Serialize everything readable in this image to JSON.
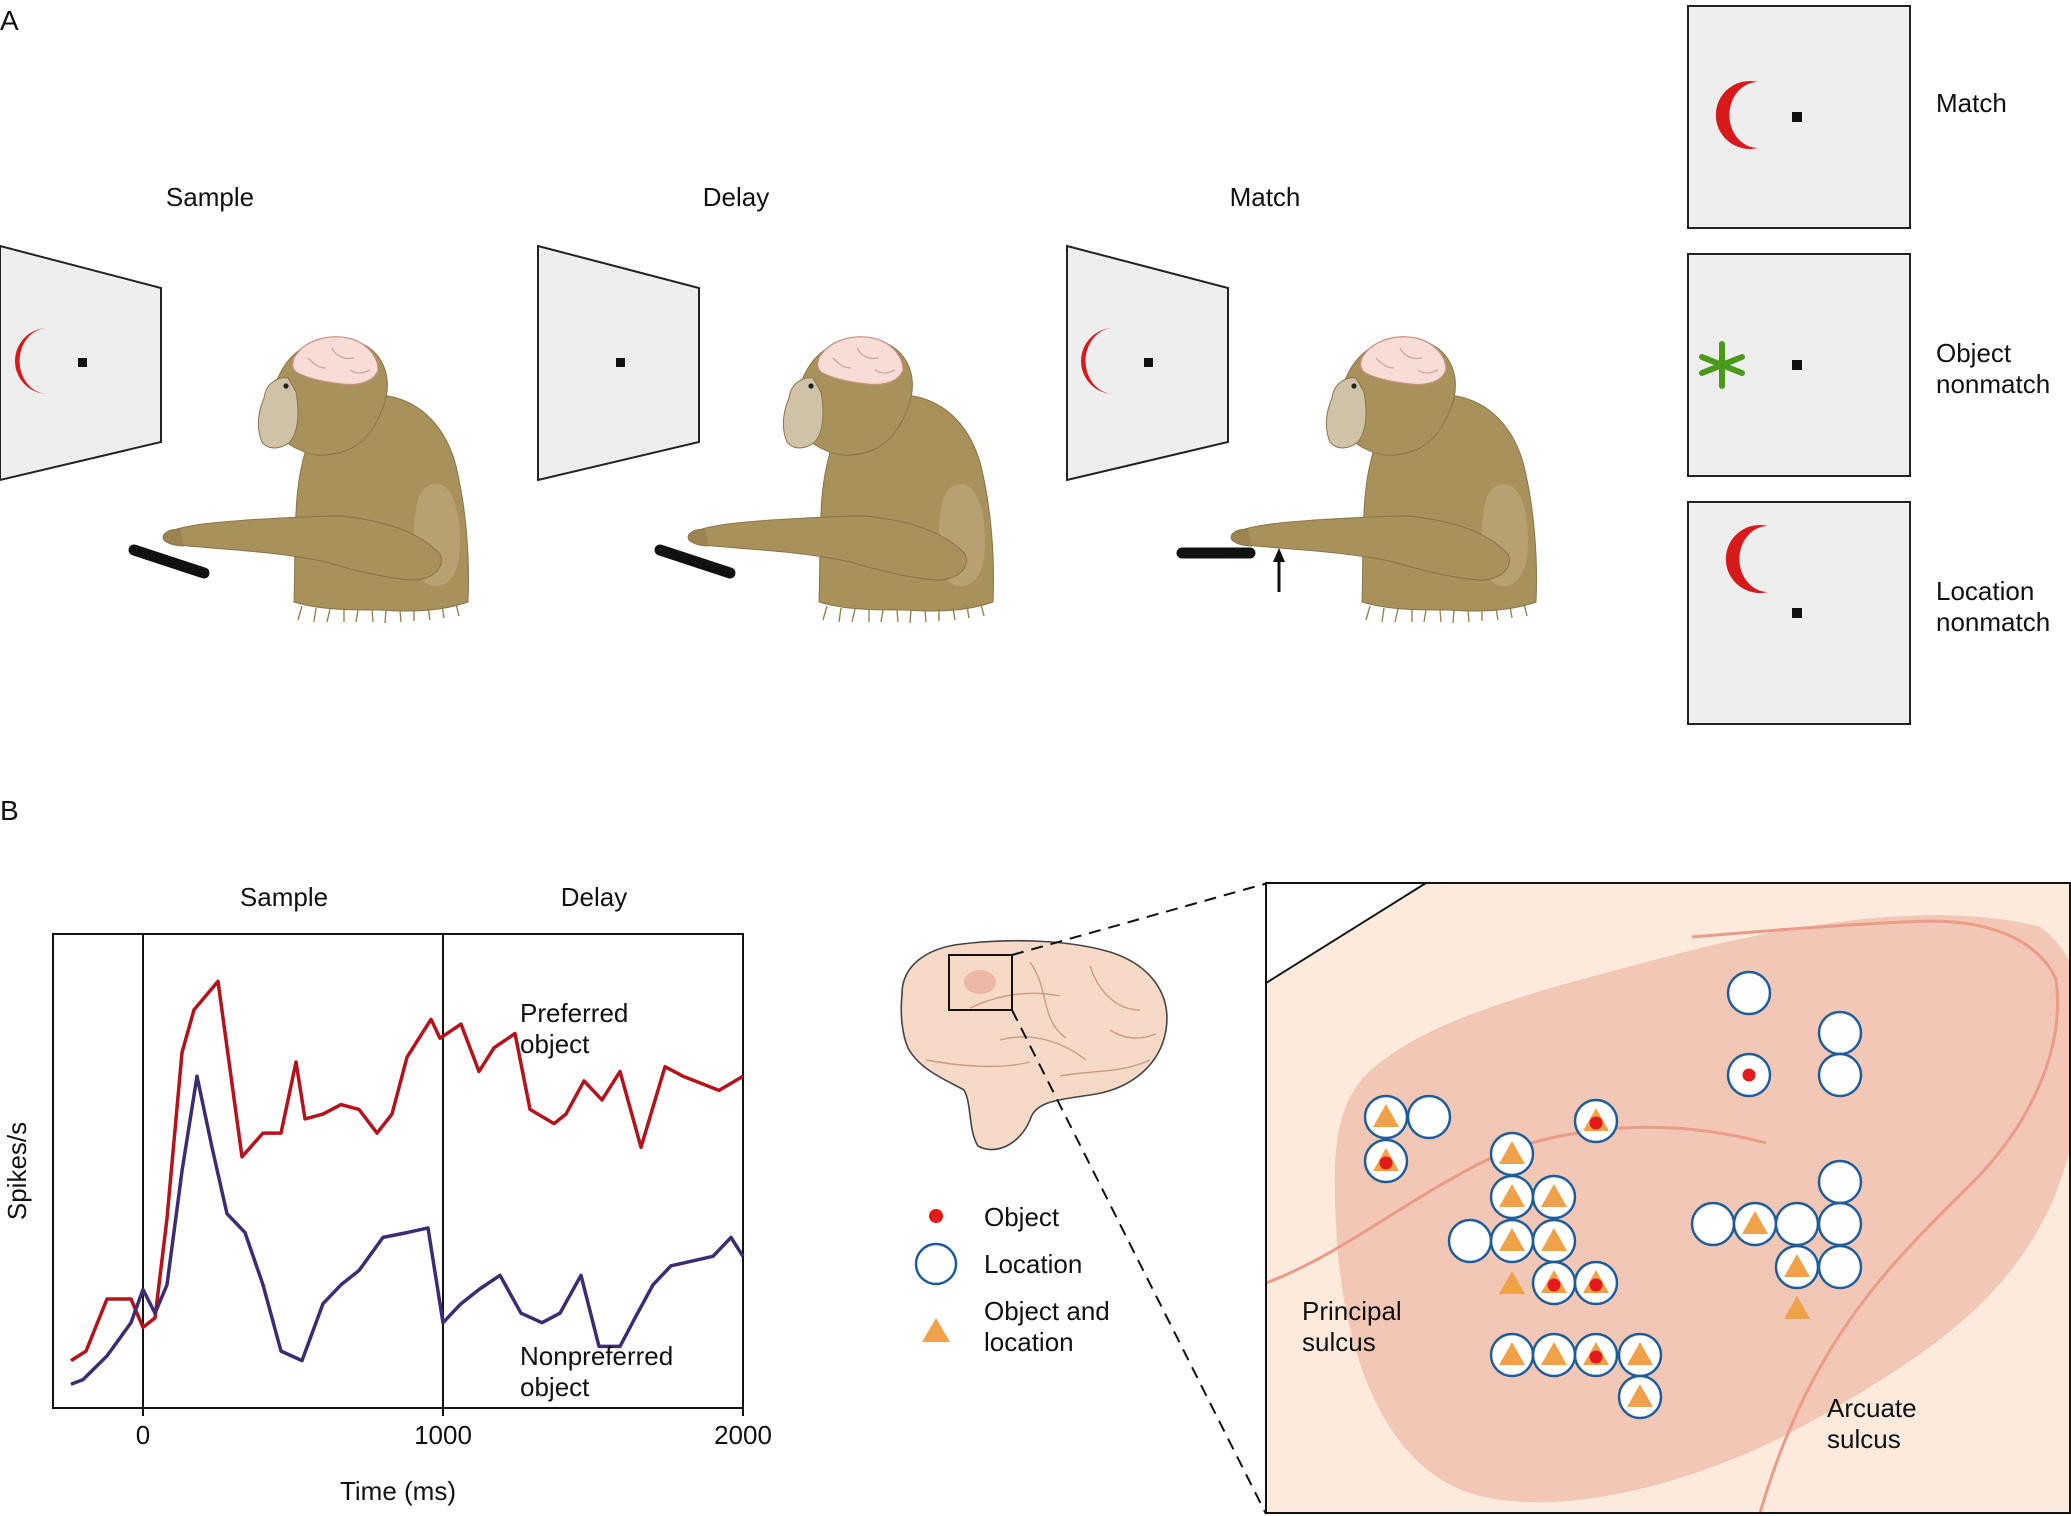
{
  "panel_a": {
    "letter": "A",
    "steps": {
      "sample": "Sample",
      "delay": "Delay",
      "match": "Match"
    },
    "test_screens": {
      "match": [
        "Match"
      ],
      "object_nonmatch": [
        "Object",
        "nonmatch"
      ],
      "location_nonmatch": [
        "Location",
        "nonmatch"
      ]
    },
    "icons": {
      "sample_stimulus": "red-crescent-icon",
      "nonmatch_object": "green-asterisk-icon",
      "fixation": "fixation-point-icon",
      "lever": "lever-icon",
      "release": "up-arrow-icon",
      "subject": "monkey-illustration"
    },
    "colors": {
      "crescent": "#d7191c",
      "asterisk": "#4a9a1a",
      "screen": "#eeeeee",
      "fur": "#a8915a"
    }
  },
  "panel_b": {
    "letter": "B",
    "epochs": {
      "sample": "Sample",
      "delay": "Delay"
    },
    "series_labels": {
      "preferred": [
        "Preferred",
        "object"
      ],
      "nonpreferred": [
        "Nonpreferred",
        "object"
      ]
    },
    "legend": {
      "object": [
        "Object"
      ],
      "location": [
        "Location"
      ],
      "both": [
        "Object and",
        "location"
      ]
    },
    "sulci": {
      "principal": [
        "Principal",
        "sulcus"
      ],
      "arcuate": [
        "Arcuate",
        "sulcus"
      ]
    },
    "colors": {
      "preferred": "#b5121b",
      "nonpreferred": "#3d2c73",
      "object_dot": "#e31a1c",
      "location_ring": "#1f5d9a",
      "triangle": "#f0a24a",
      "cortex_bg": "#fcebdd",
      "region": "#f3c7b5"
    }
  },
  "chart_data": {
    "type": "line",
    "title": "",
    "xlabel": "Time (ms)",
    "ylabel": "Spikes/s",
    "xlim": [
      -300,
      2000
    ],
    "ylim": [
      0,
      100
    ],
    "xticks": [
      0,
      1000,
      2000
    ],
    "yticks_labeled": false,
    "grid": false,
    "markers": [
      0,
      1000
    ],
    "series": [
      {
        "name": "Preferred object",
        "x": [
          -240,
          -190,
          -120,
          -40,
          0,
          40,
          80,
          130,
          170,
          250,
          330,
          400,
          460,
          510,
          540,
          600,
          660,
          720,
          780,
          830,
          880,
          960,
          990,
          1060,
          1120,
          1170,
          1240,
          1290,
          1370,
          1410,
          1470,
          1530,
          1590,
          1660,
          1740,
          1800,
          1920,
          2000
        ],
        "values": [
          10,
          12,
          23,
          23,
          17,
          19,
          40,
          75,
          84,
          90,
          53,
          58,
          58,
          73,
          61,
          62,
          64,
          63,
          58,
          62,
          74,
          82,
          78,
          81,
          71,
          76,
          79,
          63,
          60,
          62,
          69,
          65,
          71,
          55,
          72,
          70,
          67,
          70
        ]
      },
      {
        "name": "Nonpreferred object",
        "x": [
          -240,
          -200,
          -120,
          -40,
          0,
          40,
          80,
          130,
          180,
          230,
          280,
          340,
          400,
          460,
          530,
          600,
          660,
          720,
          800,
          880,
          950,
          1000,
          1060,
          1120,
          1190,
          1260,
          1330,
          1390,
          1460,
          1520,
          1590,
          1640,
          1700,
          1760,
          1830,
          1900,
          1960,
          2000
        ],
        "values": [
          5,
          6,
          11,
          18,
          25,
          20,
          26,
          50,
          70,
          55,
          41,
          37,
          26,
          12,
          10,
          22,
          26,
          29,
          36,
          37,
          38,
          18,
          22,
          25,
          28,
          20,
          18,
          20,
          28,
          13,
          13,
          19,
          26,
          30,
          31,
          32,
          36,
          32
        ]
      }
    ]
  }
}
